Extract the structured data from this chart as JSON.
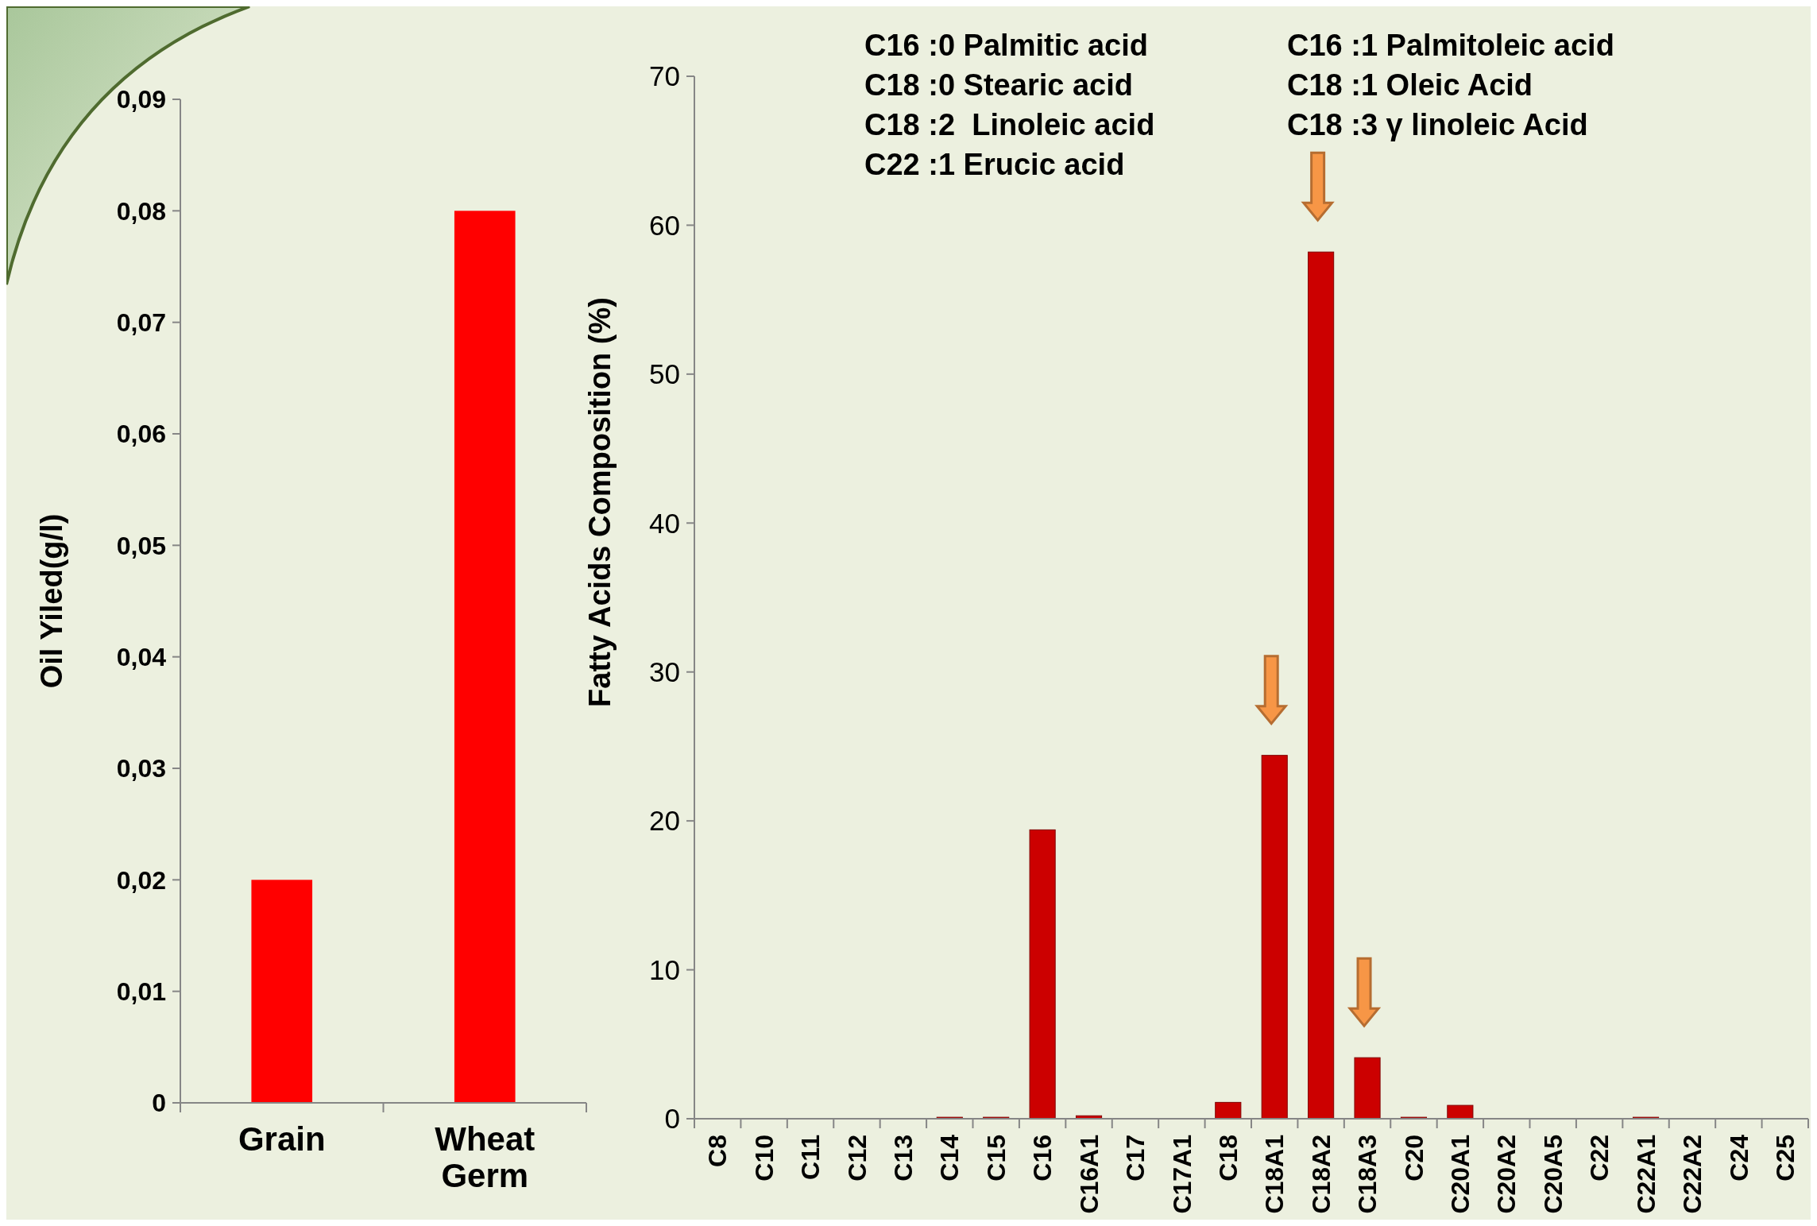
{
  "chart_data": [
    {
      "type": "bar",
      "ylabel": "Oil Yiled(g/l)",
      "categories": [
        "Grain",
        "Wheat Germ"
      ],
      "values": [
        0.02,
        0.08
      ],
      "color": "#ff0000",
      "ylim": [
        0,
        0.09
      ],
      "yticks": [
        0,
        {
          "value": 0.01,
          "label": "0,01"
        },
        {
          "value": 0.02,
          "label": "0,02"
        },
        {
          "value": 0.03,
          "label": "0,03"
        },
        {
          "value": 0.04,
          "label": "0,04"
        },
        {
          "value": 0.05,
          "label": "0,05"
        },
        {
          "value": 0.06,
          "label": "0,06"
        },
        {
          "value": 0.07,
          "label": "0,07"
        },
        {
          "value": 0.08,
          "label": "0,08"
        },
        {
          "value": 0.09,
          "label": "0,09"
        }
      ],
      "grid": false
    },
    {
      "type": "bar",
      "ylabel": "Fatty Acids Composition (%)",
      "categories": [
        "C8",
        "C10",
        "C11",
        "C12",
        "C13",
        "C14",
        "C15",
        "C16",
        "C16A1",
        "C17",
        "C17A1",
        "C18",
        "C18A1",
        "C18A2",
        "C18A3",
        "C20",
        "C20A1",
        "C20A2",
        "C20A5",
        "C22",
        "C22A1",
        "C22A2",
        "C24",
        "C25"
      ],
      "values": [
        0,
        0,
        0,
        0,
        0,
        0.1,
        0.1,
        19.4,
        0.2,
        0,
        0,
        1.1,
        24.4,
        58.2,
        4.1,
        0.1,
        0.9,
        0,
        0,
        0,
        0.1,
        0,
        0,
        0
      ],
      "color": "#cc0000",
      "ylim": [
        0,
        70
      ],
      "yticks": [
        0,
        10,
        20,
        30,
        40,
        50,
        60,
        70
      ],
      "grid": false,
      "annotations": [
        "C16 :0 Palmitic acid",
        "C16 :1 Palmitoleic acid",
        "C18 :0 Stearic acid",
        "C18 :1 Oleic Acid",
        "C18 :2  Linoleic acid",
        "C18 :3 γ linoleic Acid",
        "C22 :1 Erucic acid"
      ]
    }
  ]
}
